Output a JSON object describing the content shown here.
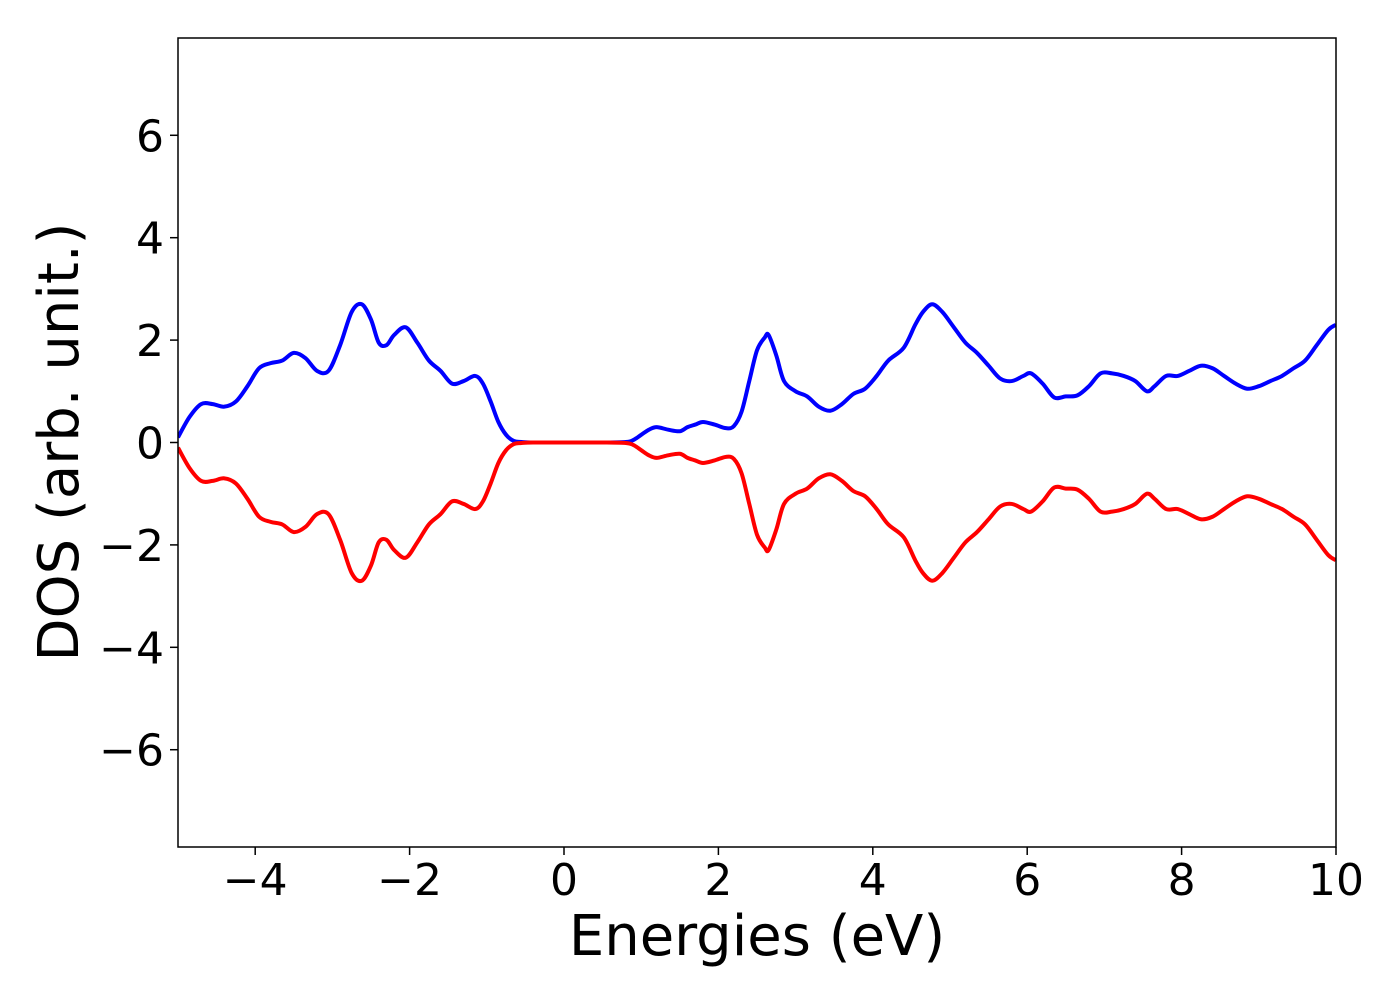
{
  "chart_data": {
    "type": "line",
    "title": "",
    "xlabel": "Energies (eV)",
    "ylabel": "DOS (arb. unit.)",
    "xlim": [
      -5,
      10
    ],
    "ylim": [
      -7.9,
      7.9
    ],
    "xticks": [
      -4,
      -2,
      0,
      2,
      4,
      6,
      8,
      10
    ],
    "yticks": [
      -6,
      -4,
      -2,
      0,
      2,
      4,
      6
    ],
    "xtick_labels": [
      "−4",
      "−2",
      "0",
      "2",
      "4",
      "6",
      "8",
      "10"
    ],
    "ytick_labels": [
      "−6",
      "−4",
      "−2",
      "0",
      "2",
      "4",
      "6"
    ],
    "grid": false,
    "legend": "none",
    "series": [
      {
        "color": "#0000ff",
        "x": [
          -5.0,
          -4.85,
          -4.7,
          -4.55,
          -4.4,
          -4.25,
          -4.1,
          -3.95,
          -3.8,
          -3.65,
          -3.5,
          -3.35,
          -3.2,
          -3.05,
          -2.9,
          -2.75,
          -2.62,
          -2.5,
          -2.4,
          -2.3,
          -2.2,
          -2.05,
          -1.9,
          -1.75,
          -1.6,
          -1.45,
          -1.3,
          -1.15,
          -1.05,
          -0.95,
          -0.85,
          -0.75,
          -0.65,
          -0.55,
          -0.4,
          0.0,
          0.5,
          0.8,
          0.9,
          1.0,
          1.1,
          1.2,
          1.35,
          1.5,
          1.6,
          1.7,
          1.8,
          1.95,
          2.1,
          2.2,
          2.3,
          2.4,
          2.5,
          2.6,
          2.65,
          2.75,
          2.85,
          3.0,
          3.15,
          3.3,
          3.45,
          3.6,
          3.75,
          3.9,
          4.05,
          4.2,
          4.4,
          4.55,
          4.65,
          4.77,
          4.9,
          5.05,
          5.2,
          5.35,
          5.5,
          5.65,
          5.8,
          5.95,
          6.05,
          6.2,
          6.35,
          6.5,
          6.65,
          6.8,
          6.95,
          7.1,
          7.25,
          7.4,
          7.55,
          7.65,
          7.8,
          7.95,
          8.1,
          8.25,
          8.4,
          8.55,
          8.7,
          8.85,
          9.0,
          9.15,
          9.3,
          9.45,
          9.6,
          9.75,
          9.9,
          10.0
        ],
        "values": [
          0.1,
          0.5,
          0.75,
          0.75,
          0.7,
          0.8,
          1.1,
          1.45,
          1.55,
          1.6,
          1.75,
          1.65,
          1.4,
          1.4,
          1.9,
          2.55,
          2.7,
          2.4,
          1.95,
          1.9,
          2.1,
          2.25,
          1.95,
          1.6,
          1.4,
          1.15,
          1.2,
          1.3,
          1.15,
          0.8,
          0.4,
          0.15,
          0.03,
          0.01,
          0.0,
          0.0,
          0.0,
          0.01,
          0.05,
          0.15,
          0.25,
          0.3,
          0.25,
          0.22,
          0.3,
          0.35,
          0.4,
          0.35,
          0.28,
          0.32,
          0.6,
          1.2,
          1.8,
          2.05,
          2.1,
          1.7,
          1.2,
          1.0,
          0.9,
          0.7,
          0.62,
          0.75,
          0.95,
          1.05,
          1.3,
          1.6,
          1.85,
          2.3,
          2.55,
          2.7,
          2.55,
          2.25,
          1.95,
          1.75,
          1.5,
          1.25,
          1.2,
          1.3,
          1.35,
          1.15,
          0.88,
          0.9,
          0.92,
          1.1,
          1.35,
          1.35,
          1.3,
          1.2,
          1.0,
          1.1,
          1.3,
          1.3,
          1.4,
          1.5,
          1.45,
          1.3,
          1.15,
          1.05,
          1.1,
          1.2,
          1.3,
          1.45,
          1.6,
          1.9,
          2.2,
          2.3
        ]
      },
      {
        "color": "#ff0000",
        "x": [
          -5.0,
          -4.85,
          -4.7,
          -4.55,
          -4.4,
          -4.25,
          -4.1,
          -3.95,
          -3.8,
          -3.65,
          -3.5,
          -3.35,
          -3.2,
          -3.05,
          -2.9,
          -2.75,
          -2.62,
          -2.5,
          -2.4,
          -2.3,
          -2.2,
          -2.05,
          -1.9,
          -1.75,
          -1.6,
          -1.45,
          -1.3,
          -1.15,
          -1.05,
          -0.95,
          -0.85,
          -0.75,
          -0.65,
          -0.55,
          -0.4,
          0.0,
          0.5,
          0.8,
          0.9,
          1.0,
          1.1,
          1.2,
          1.35,
          1.5,
          1.6,
          1.7,
          1.8,
          1.95,
          2.1,
          2.2,
          2.3,
          2.4,
          2.5,
          2.6,
          2.65,
          2.75,
          2.85,
          3.0,
          3.15,
          3.3,
          3.45,
          3.6,
          3.75,
          3.9,
          4.05,
          4.2,
          4.4,
          4.55,
          4.65,
          4.77,
          4.9,
          5.05,
          5.2,
          5.35,
          5.5,
          5.65,
          5.8,
          5.95,
          6.05,
          6.2,
          6.35,
          6.5,
          6.65,
          6.8,
          6.95,
          7.1,
          7.25,
          7.4,
          7.55,
          7.65,
          7.8,
          7.95,
          8.1,
          8.25,
          8.4,
          8.55,
          8.7,
          8.85,
          9.0,
          9.15,
          9.3,
          9.45,
          9.6,
          9.75,
          9.9,
          10.0
        ],
        "values": [
          -0.1,
          -0.5,
          -0.75,
          -0.75,
          -0.7,
          -0.8,
          -1.1,
          -1.45,
          -1.55,
          -1.6,
          -1.75,
          -1.65,
          -1.4,
          -1.4,
          -1.9,
          -2.55,
          -2.7,
          -2.4,
          -1.95,
          -1.9,
          -2.1,
          -2.25,
          -1.95,
          -1.6,
          -1.4,
          -1.15,
          -1.2,
          -1.3,
          -1.15,
          -0.8,
          -0.4,
          -0.15,
          -0.03,
          -0.01,
          0.0,
          0.0,
          0.0,
          -0.01,
          -0.05,
          -0.15,
          -0.25,
          -0.3,
          -0.25,
          -0.22,
          -0.3,
          -0.35,
          -0.4,
          -0.35,
          -0.28,
          -0.32,
          -0.6,
          -1.2,
          -1.8,
          -2.05,
          -2.1,
          -1.7,
          -1.2,
          -1.0,
          -0.9,
          -0.7,
          -0.62,
          -0.75,
          -0.95,
          -1.05,
          -1.3,
          -1.6,
          -1.85,
          -2.3,
          -2.55,
          -2.7,
          -2.55,
          -2.25,
          -1.95,
          -1.75,
          -1.5,
          -1.25,
          -1.2,
          -1.3,
          -1.35,
          -1.15,
          -0.88,
          -0.9,
          -0.92,
          -1.1,
          -1.35,
          -1.35,
          -1.3,
          -1.2,
          -1.0,
          -1.1,
          -1.3,
          -1.3,
          -1.4,
          -1.5,
          -1.45,
          -1.3,
          -1.15,
          -1.05,
          -1.1,
          -1.2,
          -1.3,
          -1.45,
          -1.6,
          -1.9,
          -2.2,
          -2.3
        ]
      }
    ]
  }
}
